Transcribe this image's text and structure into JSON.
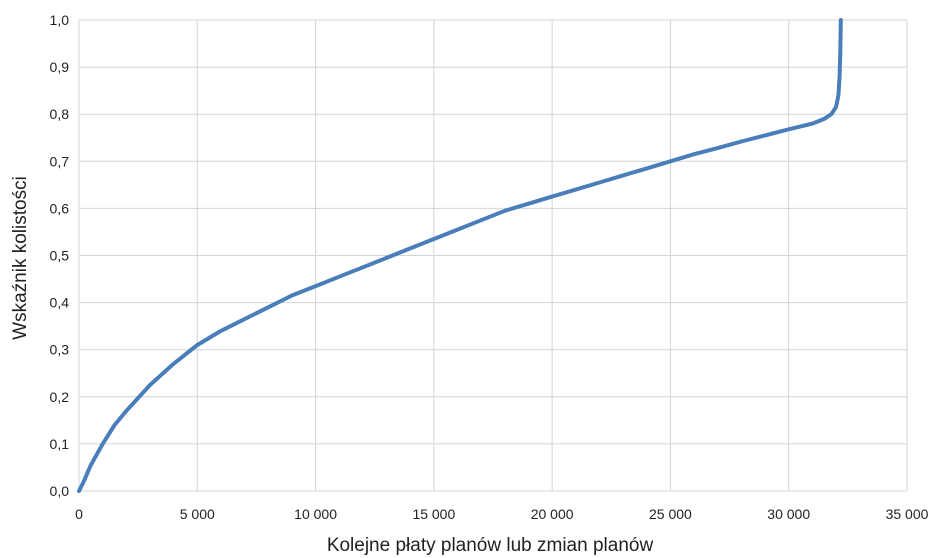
{
  "chart_data": {
    "type": "line",
    "title": "",
    "xlabel": "Kolejne płaty planów lub zmian planów",
    "ylabel": "Wskaźnik kolistości",
    "xlim": [
      0,
      35000
    ],
    "ylim": [
      0,
      1.0
    ],
    "x_ticks": [
      0,
      5000,
      10000,
      15000,
      20000,
      25000,
      30000,
      35000
    ],
    "x_tick_labels": [
      "0",
      "5 000",
      "10 000",
      "15 000",
      "20 000",
      "25 000",
      "30 000",
      "35 000"
    ],
    "y_ticks": [
      0,
      0.1,
      0.2,
      0.3,
      0.4,
      0.5,
      0.6,
      0.7,
      0.8,
      0.9,
      1.0
    ],
    "y_tick_labels": [
      "0,0",
      "0,1",
      "0,2",
      "0,3",
      "0,4",
      "0,5",
      "0,6",
      "0,7",
      "0,8",
      "0,9",
      "1,0"
    ],
    "grid": {
      "vertical": true,
      "horizontal": true
    },
    "legend": "none",
    "series": [
      {
        "color": "#4a7ebb",
        "points": [
          [
            0,
            0.0
          ],
          [
            200,
            0.02
          ],
          [
            500,
            0.055
          ],
          [
            1000,
            0.1
          ],
          [
            1500,
            0.14
          ],
          [
            2000,
            0.17
          ],
          [
            3000,
            0.225
          ],
          [
            4000,
            0.27
          ],
          [
            5000,
            0.31
          ],
          [
            6000,
            0.34
          ],
          [
            7000,
            0.365
          ],
          [
            8000,
            0.39
          ],
          [
            9000,
            0.415
          ],
          [
            10000,
            0.435
          ],
          [
            11000,
            0.455
          ],
          [
            12000,
            0.475
          ],
          [
            13000,
            0.495
          ],
          [
            14000,
            0.515
          ],
          [
            15000,
            0.535
          ],
          [
            16000,
            0.555
          ],
          [
            17000,
            0.575
          ],
          [
            18000,
            0.595
          ],
          [
            19000,
            0.61
          ],
          [
            20000,
            0.625
          ],
          [
            21000,
            0.64
          ],
          [
            22000,
            0.655
          ],
          [
            23000,
            0.67
          ],
          [
            24000,
            0.685
          ],
          [
            25000,
            0.7
          ],
          [
            26000,
            0.715
          ],
          [
            27000,
            0.728
          ],
          [
            28000,
            0.742
          ],
          [
            29000,
            0.755
          ],
          [
            30000,
            0.768
          ],
          [
            31000,
            0.78
          ],
          [
            31500,
            0.79
          ],
          [
            31800,
            0.8
          ],
          [
            32000,
            0.815
          ],
          [
            32100,
            0.84
          ],
          [
            32150,
            0.88
          ],
          [
            32180,
            0.93
          ],
          [
            32200,
            1.0
          ]
        ]
      }
    ]
  }
}
